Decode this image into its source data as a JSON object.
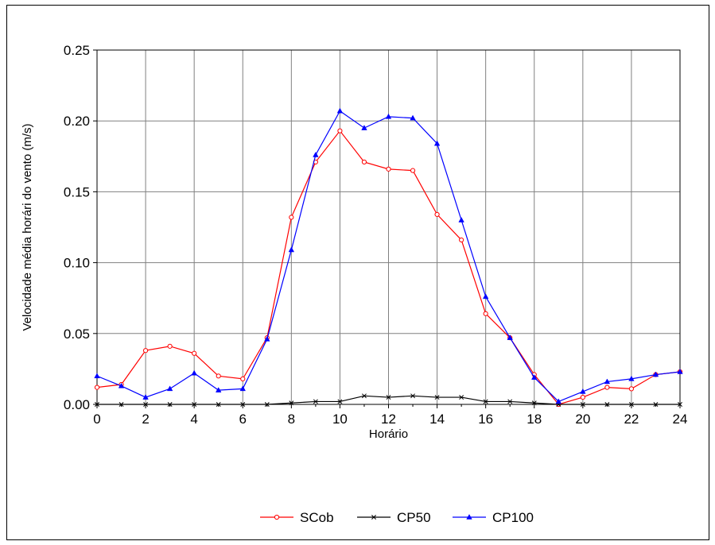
{
  "chart_data": {
    "type": "line",
    "title": "",
    "xlabel": "Horário",
    "ylabel": "Velocidade média horári do vento (m/s)",
    "xlim": [
      0,
      24
    ],
    "ylim": [
      0,
      0.25
    ],
    "x_ticks": [
      "0",
      "2",
      "4",
      "6",
      "8",
      "10",
      "12",
      "14",
      "16",
      "18",
      "20",
      "22",
      "24"
    ],
    "y_ticks": [
      "0.00",
      "0.05",
      "0.10",
      "0.15",
      "0.20",
      "0.25"
    ],
    "grid": true,
    "legend_position": "bottom",
    "x": [
      0,
      1,
      2,
      3,
      4,
      5,
      6,
      7,
      8,
      9,
      10,
      11,
      12,
      13,
      14,
      15,
      16,
      17,
      18,
      19,
      20,
      21,
      22,
      23,
      24
    ],
    "series": [
      {
        "name": "SCob",
        "color": "#ff0000",
        "marker": "circle",
        "values": [
          0.012,
          0.014,
          0.038,
          0.041,
          0.036,
          0.02,
          0.018,
          0.047,
          0.132,
          0.171,
          0.193,
          0.171,
          0.166,
          0.165,
          0.134,
          0.116,
          0.064,
          0.047,
          0.021,
          0.0,
          0.005,
          0.012,
          0.011,
          0.021,
          0.023
        ]
      },
      {
        "name": "CP50",
        "color": "#000000",
        "marker": "x",
        "values": [
          0.0,
          0.0,
          0.0,
          0.0,
          0.0,
          0.0,
          0.0,
          0.0,
          0.001,
          0.002,
          0.002,
          0.006,
          0.005,
          0.006,
          0.005,
          0.005,
          0.002,
          0.002,
          0.001,
          0.0,
          0.0,
          0.0,
          0.0,
          0.0,
          0.0
        ]
      },
      {
        "name": "CP100",
        "color": "#0000ff",
        "marker": "triangle",
        "values": [
          0.02,
          0.013,
          0.005,
          0.011,
          0.022,
          0.01,
          0.011,
          0.046,
          0.109,
          0.176,
          0.207,
          0.195,
          0.203,
          0.202,
          0.184,
          0.13,
          0.076,
          0.047,
          0.019,
          0.002,
          0.009,
          0.016,
          0.018,
          0.021,
          0.023
        ]
      }
    ]
  }
}
